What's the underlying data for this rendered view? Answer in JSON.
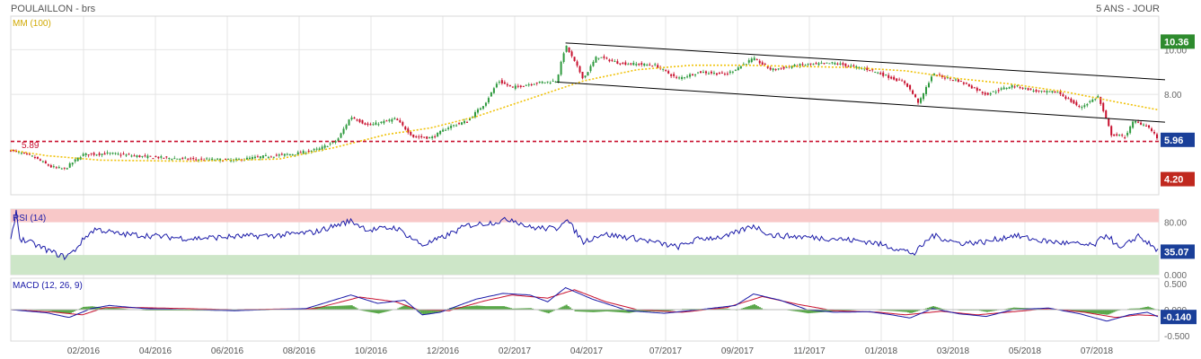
{
  "header": {
    "title": "POULAILLON - brs",
    "period": "5 ANS - JOUR"
  },
  "colors": {
    "up": "#2e9a3e",
    "down": "#c8102e",
    "ma": "#f0c20a",
    "channel": "#000000",
    "support": "#c8102e",
    "rsi_line": "#1a1aa8",
    "rsi_over": "#f8c8c8",
    "rsi_under": "#cde6c8",
    "macd_line": "#1a1aa8",
    "signal_line": "#c8102e",
    "hist": "#5aa84a",
    "tag_green": "#2e8b2e",
    "tag_blue": "#1a3f99",
    "tag_red": "#c0281e",
    "grid": "#e4e4e4"
  },
  "chart_data": [
    {
      "type": "candlestick",
      "legend": "MM (100)",
      "price_axis": {
        "ylim": [
          3.5,
          11.5
        ],
        "ticks": [
          {
            "v": 10,
            "label": "10.00"
          },
          {
            "v": 8,
            "label": "8.00"
          }
        ]
      },
      "x_labels": [
        "02/2016",
        "04/2016",
        "06/2016",
        "08/2016",
        "10/2016",
        "12/2016",
        "02/2017",
        "04/2017",
        "07/2017",
        "09/2017",
        "11/2017",
        "01/2018",
        "03/2018",
        "05/2018",
        "07/2018"
      ],
      "price_keypoints": [
        [
          0,
          5.5
        ],
        [
          25,
          5.2
        ],
        [
          45,
          4.75
        ],
        [
          60,
          4.65
        ],
        [
          80,
          5.3
        ],
        [
          110,
          5.35
        ],
        [
          150,
          5.2
        ],
        [
          200,
          5.1
        ],
        [
          250,
          5.05
        ],
        [
          280,
          5.2
        ],
        [
          320,
          5.35
        ],
        [
          345,
          5.55
        ],
        [
          365,
          5.95
        ],
        [
          380,
          7.0
        ],
        [
          400,
          6.6
        ],
        [
          430,
          6.9
        ],
        [
          450,
          6.1
        ],
        [
          470,
          6.05
        ],
        [
          490,
          6.55
        ],
        [
          510,
          6.8
        ],
        [
          530,
          7.6
        ],
        [
          545,
          8.6
        ],
        [
          560,
          8.3
        ],
        [
          585,
          8.5
        ],
        [
          610,
          8.6
        ],
        [
          620,
          10.2
        ],
        [
          640,
          8.7
        ],
        [
          655,
          9.7
        ],
        [
          680,
          9.4
        ],
        [
          720,
          9.3
        ],
        [
          745,
          8.7
        ],
        [
          770,
          9.0
        ],
        [
          800,
          8.9
        ],
        [
          830,
          9.6
        ],
        [
          850,
          9.1
        ],
        [
          880,
          9.3
        ],
        [
          920,
          9.4
        ],
        [
          960,
          9.1
        ],
        [
          1000,
          8.5
        ],
        [
          1015,
          7.6
        ],
        [
          1030,
          8.9
        ],
        [
          1060,
          8.6
        ],
        [
          1090,
          8.0
        ],
        [
          1120,
          8.4
        ],
        [
          1150,
          8.1
        ],
        [
          1170,
          8.1
        ],
        [
          1195,
          7.4
        ],
        [
          1215,
          7.9
        ],
        [
          1230,
          6.2
        ],
        [
          1245,
          6.1
        ],
        [
          1255,
          6.8
        ],
        [
          1270,
          6.6
        ],
        [
          1283,
          5.96
        ]
      ],
      "ma_100_keypoints": [
        [
          0,
          5.5
        ],
        [
          40,
          5.25
        ],
        [
          100,
          5.05
        ],
        [
          200,
          5.0
        ],
        [
          300,
          5.1
        ],
        [
          360,
          5.6
        ],
        [
          420,
          6.2
        ],
        [
          470,
          6.5
        ],
        [
          520,
          7.0
        ],
        [
          580,
          7.8
        ],
        [
          640,
          8.6
        ],
        [
          700,
          9.1
        ],
        [
          760,
          9.3
        ],
        [
          820,
          9.3
        ],
        [
          880,
          9.25
        ],
        [
          940,
          9.2
        ],
        [
          1000,
          9.05
        ],
        [
          1060,
          8.7
        ],
        [
          1120,
          8.45
        ],
        [
          1180,
          8.1
        ],
        [
          1230,
          7.7
        ],
        [
          1283,
          7.3
        ]
      ],
      "channel_upper": [
        [
          620,
          10.3
        ],
        [
          1290,
          8.65
        ]
      ],
      "channel_lower": [
        [
          610,
          8.55
        ],
        [
          1290,
          6.75
        ]
      ],
      "support": {
        "label": "5.89",
        "value": 5.89
      },
      "tags": [
        {
          "label": "10.36",
          "value": 10.36,
          "color": "green"
        },
        {
          "label": "5.96",
          "value": 5.96,
          "color": "blue"
        },
        {
          "label": "4.20",
          "value": 4.2,
          "color": "red"
        }
      ]
    },
    {
      "type": "line",
      "legend": "RSI (14)",
      "ylim": [
        0,
        100
      ],
      "ticks": [
        {
          "v": 80,
          "label": "80.00"
        },
        {
          "v": 0,
          "label": "0.000"
        }
      ],
      "bands": {
        "over": 80,
        "under": 30
      },
      "keypoints": [
        [
          0,
          50
        ],
        [
          6,
          98
        ],
        [
          10,
          55
        ],
        [
          20,
          50
        ],
        [
          45,
          35
        ],
        [
          60,
          27
        ],
        [
          70,
          35
        ],
        [
          85,
          60
        ],
        [
          95,
          70
        ],
        [
          120,
          62
        ],
        [
          150,
          60
        ],
        [
          200,
          55
        ],
        [
          250,
          58
        ],
        [
          300,
          60
        ],
        [
          340,
          65
        ],
        [
          370,
          78
        ],
        [
          380,
          82
        ],
        [
          400,
          68
        ],
        [
          430,
          72
        ],
        [
          460,
          45
        ],
        [
          480,
          55
        ],
        [
          510,
          75
        ],
        [
          540,
          80
        ],
        [
          560,
          85
        ],
        [
          580,
          72
        ],
        [
          610,
          70
        ],
        [
          620,
          86
        ],
        [
          640,
          50
        ],
        [
          660,
          62
        ],
        [
          700,
          55
        ],
        [
          745,
          42
        ],
        [
          770,
          55
        ],
        [
          800,
          58
        ],
        [
          830,
          75
        ],
        [
          850,
          60
        ],
        [
          880,
          58
        ],
        [
          920,
          55
        ],
        [
          960,
          50
        ],
        [
          990,
          40
        ],
        [
          1010,
          32
        ],
        [
          1030,
          60
        ],
        [
          1060,
          48
        ],
        [
          1090,
          50
        ],
        [
          1120,
          60
        ],
        [
          1150,
          52
        ],
        [
          1180,
          48
        ],
        [
          1210,
          44
        ],
        [
          1225,
          62
        ],
        [
          1240,
          38
        ],
        [
          1260,
          60
        ],
        [
          1283,
          35
        ]
      ],
      "tag": {
        "label": "35.07",
        "value": 35.07
      }
    },
    {
      "type": "line",
      "legend": "MACD (12, 26, 9)",
      "ylim": [
        -0.6,
        0.6
      ],
      "ticks": [
        {
          "v": 0.5,
          "label": "0.500"
        },
        {
          "v": 0.0,
          "label": "0.000"
        },
        {
          "v": -0.5,
          "label": "-0.500"
        }
      ],
      "macd_keypoints": [
        [
          0,
          0
        ],
        [
          40,
          -0.06
        ],
        [
          65,
          -0.15
        ],
        [
          90,
          0.02
        ],
        [
          110,
          0.08
        ],
        [
          150,
          0.02
        ],
        [
          250,
          -0.02
        ],
        [
          330,
          0.02
        ],
        [
          380,
          0.28
        ],
        [
          410,
          0.12
        ],
        [
          440,
          0.18
        ],
        [
          460,
          -0.1
        ],
        [
          480,
          -0.05
        ],
        [
          520,
          0.2
        ],
        [
          550,
          0.31
        ],
        [
          580,
          0.28
        ],
        [
          600,
          0.15
        ],
        [
          620,
          0.42
        ],
        [
          650,
          0.2
        ],
        [
          690,
          -0.02
        ],
        [
          730,
          -0.07
        ],
        [
          770,
          0.0
        ],
        [
          810,
          0.08
        ],
        [
          830,
          0.3
        ],
        [
          860,
          0.18
        ],
        [
          890,
          0.0
        ],
        [
          920,
          -0.05
        ],
        [
          960,
          -0.04
        ],
        [
          985,
          -0.1
        ],
        [
          1005,
          -0.16
        ],
        [
          1030,
          0.02
        ],
        [
          1060,
          -0.08
        ],
        [
          1090,
          -0.13
        ],
        [
          1120,
          0.0
        ],
        [
          1160,
          0.03
        ],
        [
          1195,
          -0.08
        ],
        [
          1225,
          -0.22
        ],
        [
          1250,
          -0.1
        ],
        [
          1270,
          -0.05
        ],
        [
          1283,
          -0.14
        ]
      ],
      "signal_keypoints": [
        [
          0,
          0
        ],
        [
          50,
          -0.05
        ],
        [
          80,
          -0.1
        ],
        [
          105,
          0.04
        ],
        [
          140,
          0.04
        ],
        [
          250,
          0.0
        ],
        [
          340,
          0.02
        ],
        [
          390,
          0.24
        ],
        [
          430,
          0.15
        ],
        [
          455,
          0.0
        ],
        [
          490,
          -0.02
        ],
        [
          530,
          0.17
        ],
        [
          560,
          0.28
        ],
        [
          600,
          0.22
        ],
        [
          630,
          0.38
        ],
        [
          665,
          0.15
        ],
        [
          700,
          0.0
        ],
        [
          750,
          -0.05
        ],
        [
          800,
          0.04
        ],
        [
          840,
          0.25
        ],
        [
          880,
          0.1
        ],
        [
          920,
          -0.02
        ],
        [
          970,
          -0.05
        ],
        [
          1000,
          -0.1
        ],
        [
          1040,
          -0.03
        ],
        [
          1080,
          -0.1
        ],
        [
          1120,
          -0.04
        ],
        [
          1160,
          0.02
        ],
        [
          1200,
          -0.05
        ],
        [
          1235,
          -0.15
        ],
        [
          1260,
          -0.1
        ],
        [
          1283,
          -0.12
        ]
      ],
      "tag": {
        "label": "-0.140",
        "value": -0.14
      }
    }
  ]
}
